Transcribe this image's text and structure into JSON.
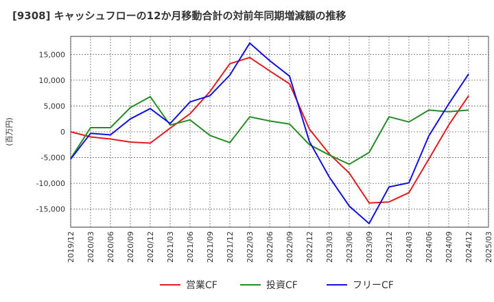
{
  "chart_data": {
    "type": "line",
    "title": "[9308]  キャッシュフローの12か月移動合計の対前年同期増減額の推移",
    "ylabel": "(百万円)",
    "xlabel": "",
    "ylim": [
      -18500,
      18500
    ],
    "yticks": [
      15000,
      10000,
      5000,
      0,
      -5000,
      -10000,
      -15000
    ],
    "ytick_labels": [
      "15,000",
      "10,000",
      "5,000",
      "0",
      "-5,000",
      "-10,000",
      "-15,000"
    ],
    "x": [
      "2019/12",
      "2020/03",
      "2020/06",
      "2020/09",
      "2020/12",
      "2021/03",
      "2021/06",
      "2021/09",
      "2021/12",
      "2022/03",
      "2022/06",
      "2022/09",
      "2022/12",
      "2023/03",
      "2023/06",
      "2023/09",
      "2023/12",
      "2024/03",
      "2024/06",
      "2024/09",
      "2024/12",
      "2025/03"
    ],
    "grid": true,
    "legend_position": "bottom",
    "series": [
      {
        "name": "営業CF",
        "color": "#e31a1c",
        "values": [
          0,
          -1000,
          -1400,
          -2000,
          -2200,
          700,
          3500,
          7800,
          13200,
          14400,
          11800,
          9300,
          500,
          -4300,
          -8000,
          -13800,
          -13600,
          -11800,
          -5300,
          1300,
          7000,
          null
        ]
      },
      {
        "name": "投資CF",
        "color": "#238b22",
        "values": [
          -5200,
          800,
          800,
          4700,
          6800,
          1300,
          2300,
          -700,
          -2100,
          2900,
          2100,
          1500,
          -2500,
          -4500,
          -6300,
          -4000,
          2900,
          1900,
          4200,
          3900,
          4200,
          null
        ]
      },
      {
        "name": "フリーCF",
        "color": "#1010e0",
        "values": [
          -5300,
          -300,
          -600,
          2500,
          4500,
          1600,
          5800,
          7000,
          11000,
          17200,
          13800,
          10800,
          -1900,
          -8800,
          -14400,
          -17800,
          -10700,
          -9900,
          -800,
          5400,
          11200,
          null
        ]
      }
    ]
  }
}
